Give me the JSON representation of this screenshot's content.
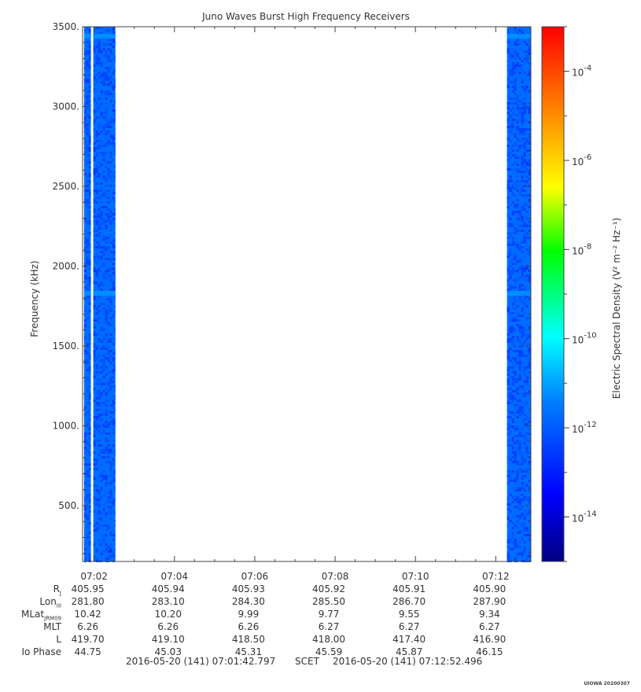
{
  "chart_data": {
    "type": "heatmap",
    "title": "Juno Waves Burst High Frequency Receivers",
    "ylabel": "Frequency (kHz)",
    "colorbar_label": "Electric Spectral Density (V² m⁻² Hz⁻¹)",
    "y_ticks": [
      "500.",
      "1000.",
      "1500.",
      "2000.",
      "2500.",
      "3000.",
      "3500."
    ],
    "y_tick_values": [
      500,
      1000,
      1500,
      2000,
      2500,
      3000,
      3500
    ],
    "ylim": [
      150,
      3500
    ],
    "x_ticks": [
      "07:02",
      "07:04",
      "07:06",
      "07:08",
      "07:10",
      "07:12"
    ],
    "x_tick_minutes": [
      422,
      424,
      426,
      428,
      430,
      432
    ],
    "xlim_minutes": [
      421.713,
      432.875
    ],
    "colorbar_ticks": [
      "10",
      "10",
      "10",
      "10",
      "10",
      "10"
    ],
    "colorbar_exponents": [
      "-4",
      "-6",
      "-8",
      "-10",
      "-12",
      "-14"
    ],
    "colorbar_exponent_values": [
      -4,
      -6,
      -8,
      -10,
      -12,
      -14
    ],
    "colorbar_range": [
      -15,
      -3
    ],
    "colormap": [
      "#00007f",
      "#0000ff",
      "#007fff",
      "#00ffff",
      "#00ff00",
      "#ffff00",
      "#ff7f00",
      "#ff0000"
    ],
    "data_blocks": [
      {
        "start_minute": 421.75,
        "end_minute": 421.92,
        "level_range": [
          -12.6,
          -11.3
        ]
      },
      {
        "start_minute": 421.98,
        "end_minute": 422.53,
        "level_range": [
          -12.6,
          -11.3
        ]
      },
      {
        "start_minute": 432.28,
        "end_minute": 432.95,
        "level_range": [
          -12.6,
          -11.3
        ]
      }
    ],
    "bright_bands_khz": [
      1830,
      3440
    ]
  },
  "ephemeris": {
    "rows": [
      {
        "label": "R",
        "sub": "J",
        "values": [
          "405.95",
          "405.94",
          "405.93",
          "405.92",
          "405.91",
          "405.90"
        ]
      },
      {
        "label": "Lon",
        "sub": "III",
        "values": [
          "281.80",
          "283.10",
          "284.30",
          "285.50",
          "286.70",
          "287.90"
        ]
      },
      {
        "label": "MLat",
        "sub": "JRM09",
        "values": [
          "10.42",
          "10.20",
          "9.99",
          "9.77",
          "9.55",
          "9.34"
        ]
      },
      {
        "label": "MLT",
        "sub": "",
        "values": [
          "6.26",
          "6.26",
          "6.26",
          "6.27",
          "6.27",
          "6.27"
        ]
      },
      {
        "label": "L",
        "sub": "",
        "values": [
          "419.70",
          "419.10",
          "418.50",
          "418.00",
          "417.40",
          "416.90"
        ]
      },
      {
        "label": "Io Phase",
        "sub": "",
        "values": [
          "44.75",
          "45.03",
          "45.31",
          "45.59",
          "45.87",
          "46.15"
        ]
      }
    ]
  },
  "footer": {
    "start_time": "2016-05-20 (141) 07:01:42.797",
    "scet": "SCET",
    "end_time": "2016-05-20 (141) 07:12:52.496"
  },
  "stamp": "UIOWA 20200307"
}
